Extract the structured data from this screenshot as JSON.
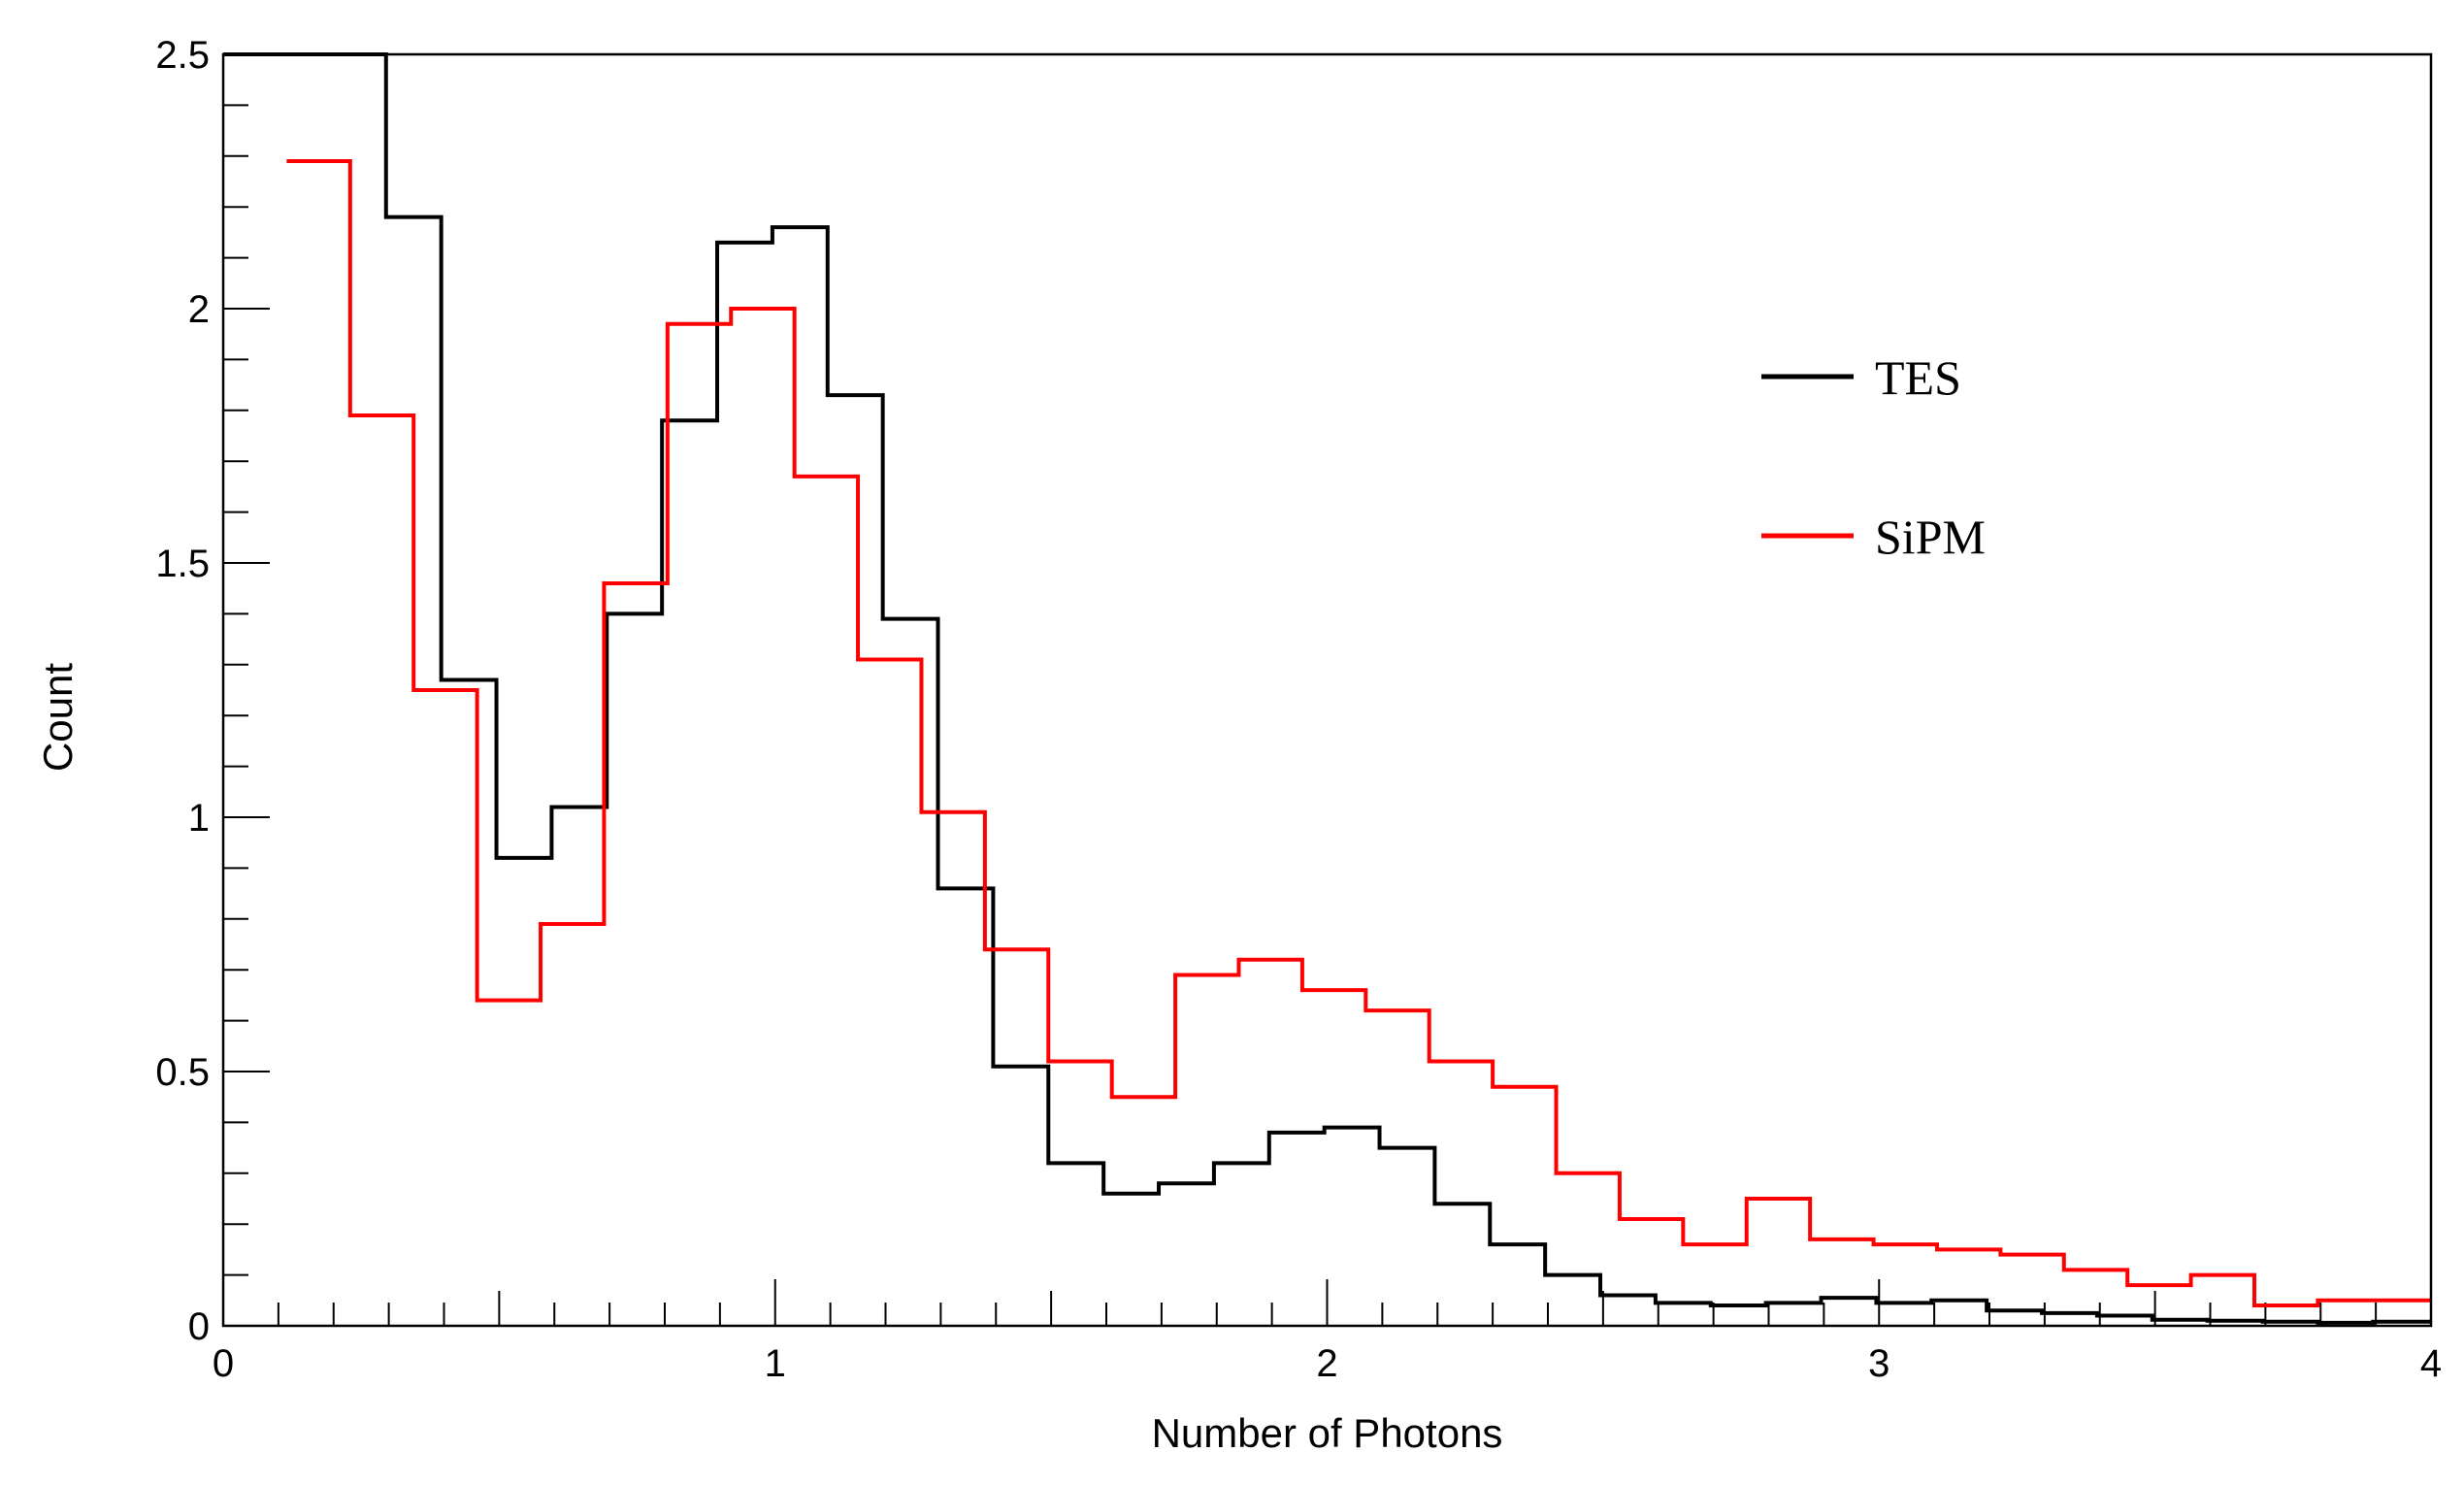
{
  "chart_data": {
    "type": "histogram",
    "title": "",
    "xlabel": "Number of Photons",
    "ylabel": "Count",
    "xlim": [
      0,
      4
    ],
    "ylim": [
      0,
      2.5
    ],
    "x_ticks": [
      "0",
      "1",
      "2",
      "3",
      "4"
    ],
    "y_ticks": [
      "0",
      "0.5",
      "1",
      "1.5",
      "2",
      "2.5"
    ],
    "grid": false,
    "legend_position": "upper-right",
    "series": [
      {
        "name": "TES",
        "color": "#000000",
        "bin_edges": [
          0,
          0.295,
          0.395,
          0.495,
          0.595,
          0.695,
          0.795,
          0.895,
          0.995,
          1.095,
          1.195,
          1.295,
          1.395,
          1.495,
          1.595,
          1.695,
          1.795,
          1.895,
          1.995,
          2.095,
          2.195,
          2.295,
          2.395,
          2.495,
          2.595,
          2.695,
          2.795,
          2.895,
          2.995,
          3.095,
          3.195,
          3.295,
          3.395,
          3.495,
          3.595,
          3.695,
          3.795,
          3.895,
          4.0
        ],
        "values": [
          2.5,
          2.18,
          1.27,
          0.92,
          1.02,
          1.4,
          1.78,
          2.13,
          2.16,
          1.83,
          1.39,
          0.86,
          0.51,
          0.32,
          0.26,
          0.28,
          0.32,
          0.38,
          0.39,
          0.35,
          0.24,
          0.16,
          0.1,
          0.06,
          0.045,
          0.04,
          0.045,
          0.055,
          0.045,
          0.05,
          0.03,
          0.025,
          0.02,
          0.012,
          0.01,
          0.008,
          0.006,
          0.008
        ]
      },
      {
        "name": "SiPM",
        "color": "#ff0000",
        "bin_edges": [
          0.115,
          0.23,
          0.345,
          0.46,
          0.575,
          0.69,
          0.805,
          0.92,
          1.035,
          1.15,
          1.265,
          1.38,
          1.495,
          1.61,
          1.725,
          1.84,
          1.955,
          2.07,
          2.185,
          2.3,
          2.415,
          2.53,
          2.645,
          2.76,
          2.875,
          2.99,
          3.105,
          3.22,
          3.335,
          3.45,
          3.565,
          3.68,
          3.795,
          3.91,
          4.0
        ],
        "values": [
          2.29,
          1.79,
          1.25,
          0.64,
          0.79,
          1.46,
          1.97,
          2.0,
          1.67,
          1.31,
          1.01,
          0.74,
          0.52,
          0.45,
          0.69,
          0.72,
          0.66,
          0.62,
          0.52,
          0.47,
          0.3,
          0.21,
          0.16,
          0.25,
          0.17,
          0.16,
          0.15,
          0.14,
          0.11,
          0.08,
          0.1,
          0.04,
          0.05,
          0.05
        ]
      }
    ]
  }
}
